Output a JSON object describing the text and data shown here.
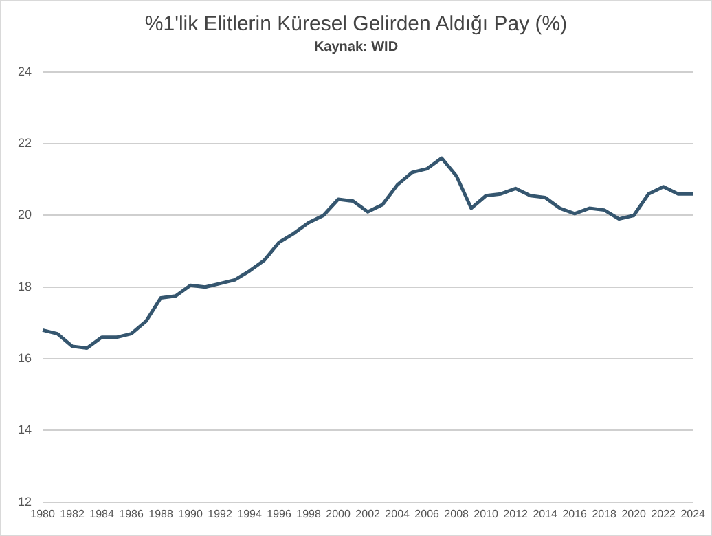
{
  "chart_data": {
    "type": "line",
    "title": "%1'lik Elitlerin Küresel Gelirden Aldığı Pay (%)",
    "subtitle": "Kaynak: WID",
    "categories": [
      "1980",
      null,
      "1982",
      null,
      "1984",
      null,
      "1986",
      null,
      "1988",
      null,
      "1990",
      null,
      "1992",
      null,
      "1994",
      null,
      "1996",
      null,
      "1998",
      null,
      "2000",
      null,
      "2002",
      null,
      "2004",
      null,
      "2006",
      null,
      "2008",
      null,
      "2010",
      null,
      "2012",
      null,
      "2014",
      null,
      "2016",
      null,
      "2018",
      null,
      "2020",
      null,
      "2022",
      null,
      "2024"
    ],
    "series": [
      {
        "color": "#35566f",
        "values": [
          16.8,
          16.7,
          16.35,
          16.3,
          16.6,
          16.6,
          16.7,
          17.05,
          17.7,
          17.75,
          18.05,
          18.0,
          18.1,
          18.2,
          18.45,
          18.75,
          19.25,
          19.5,
          19.8,
          20.0,
          20.45,
          20.4,
          20.1,
          20.3,
          20.85,
          21.2,
          21.3,
          21.6,
          21.1,
          20.2,
          20.55,
          20.6,
          20.75,
          20.55,
          20.5,
          20.2,
          20.05,
          20.2,
          20.15,
          19.9,
          20.0,
          20.6,
          20.8,
          20.6,
          20.6
        ]
      }
    ],
    "ylim": [
      12,
      24
    ],
    "yticks": [
      12,
      14,
      16,
      18,
      20,
      22,
      24
    ],
    "grid": "y",
    "legend": false,
    "marker": "none",
    "line_style": "solid"
  }
}
